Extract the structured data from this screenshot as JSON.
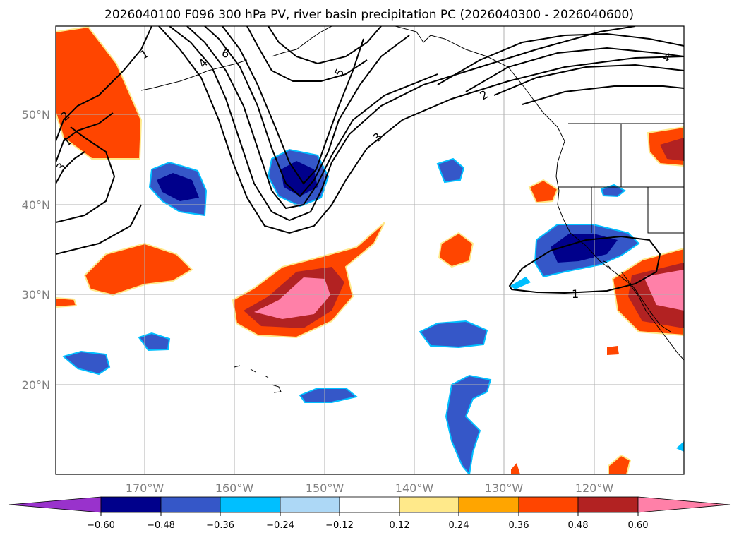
{
  "title": "2026040100 F096 300 hPa PV, river basin precipitation PC (2026040300 - 2026040600)",
  "map": {
    "lat_labels": [
      "50°N",
      "40°N",
      "30°N",
      "20°N"
    ],
    "lon_labels": [
      "170°W",
      "160°W",
      "150°W",
      "140°W",
      "130°W",
      "120°W"
    ],
    "pv_contour_labels": [
      "1",
      "2",
      "3",
      "4",
      "5",
      "6",
      "1",
      "2",
      "3",
      "4",
      "1"
    ],
    "colors": {
      "dark_blue": "#00008b",
      "med_blue": "#3557c8",
      "cyan": "#00bfff",
      "light_blue": "#add8f6",
      "light_yellow": "#ffe98a",
      "orange": "#ffa500",
      "red_orange": "#ff4500",
      "dark_red": "#b22222",
      "pink": "#ff80a8",
      "grid": "#b0b0b0",
      "coast": "#000000"
    }
  },
  "colorbar": {
    "labels": [
      "−0.60",
      "−0.48",
      "−0.36",
      "−0.24",
      "−0.12",
      "0.12",
      "0.24",
      "0.36",
      "0.48",
      "0.60"
    ],
    "bins": [
      "#9932cc",
      "#00008b",
      "#3557c8",
      "#00bfff",
      "#add8f6",
      "#ffffff",
      "#ffe98a",
      "#ffa500",
      "#ff4500",
      "#b22222",
      "#ff80a8"
    ]
  }
}
